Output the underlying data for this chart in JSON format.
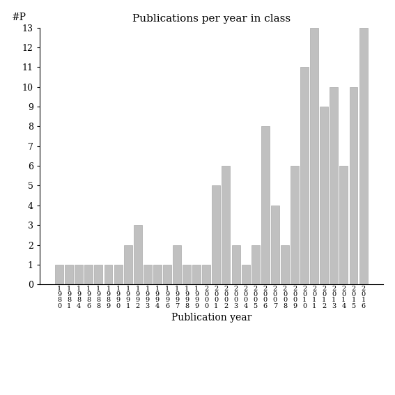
{
  "title": "Publications per year in class",
  "xlabel": "Publication year",
  "ylabel": "#P",
  "bar_color": "#c0c0c0",
  "edge_color": "#aaaaaa",
  "background_color": "#ffffff",
  "years": [
    "1980",
    "1981",
    "1984",
    "1986",
    "1988",
    "1989",
    "1990",
    "1991",
    "1992",
    "1993",
    "1994",
    "1996",
    "1997",
    "1998",
    "1999",
    "2000",
    "2001",
    "2002",
    "2003",
    "2004",
    "2005",
    "2006",
    "2007",
    "2008",
    "2009",
    "2010",
    "2011",
    "2012",
    "2013",
    "2014",
    "2015",
    "2016"
  ],
  "values": [
    1,
    1,
    1,
    1,
    1,
    1,
    1,
    2,
    3,
    1,
    1,
    1,
    2,
    1,
    1,
    1,
    5,
    6,
    2,
    1,
    2,
    8,
    4,
    2,
    6,
    11,
    13,
    9,
    10,
    6,
    10,
    13
  ],
  "ylim_max": 13,
  "yticks": [
    0,
    1,
    2,
    3,
    4,
    5,
    6,
    7,
    8,
    9,
    10,
    11,
    12,
    13
  ],
  "title_fontsize": 11,
  "axis_label_fontsize": 10,
  "tick_fontsize": 9,
  "xtick_fontsize": 7
}
